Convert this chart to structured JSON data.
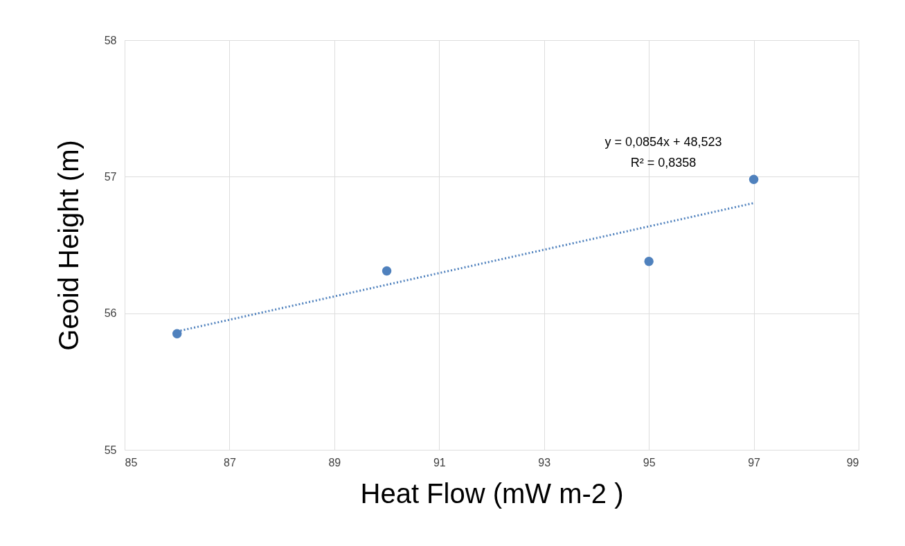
{
  "chart_data": {
    "type": "scatter",
    "xlabel": "Heat Flow (mW m-2 )",
    "ylabel": "Geoid Height (m)",
    "series": [
      {
        "color": "#4f81bd",
        "x": [
          86,
          90,
          95,
          97
        ],
        "values": [
          55.85,
          56.31,
          56.38,
          56.98
        ],
        "marker": "circle"
      },
      {
        "type": "line",
        "color": "#4f81bd",
        "x": [
          86,
          97
        ],
        "values": [
          55.867,
          56.807
        ],
        "line_style": "dotted"
      }
    ],
    "annotations": [
      "y = 0,0854x + 48,523",
      "R² = 0,8358"
    ],
    "xlim": [
      85,
      99
    ],
    "xticks": [
      85,
      87,
      89,
      91,
      93,
      95,
      97,
      99
    ],
    "ylim": [
      55,
      58
    ],
    "yticks": [
      55,
      56,
      57,
      58
    ],
    "grid": true
  }
}
